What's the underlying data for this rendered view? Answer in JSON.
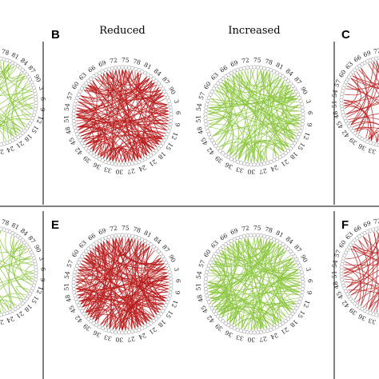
{
  "panels": [
    {
      "letter": "B",
      "column_labels": [
        "Reduced",
        "Increased"
      ]
    },
    {
      "letter": "C"
    },
    {
      "letter": "E"
    },
    {
      "letter": "F"
    }
  ],
  "circle_tick_labels": {
    "left_side": [
      "72",
      "75",
      "78",
      "81",
      "84",
      "87",
      "90",
      "3",
      "6",
      "9",
      "12",
      "15"
    ],
    "right_side": [
      "63",
      "60",
      "57",
      "54",
      "51",
      "48",
      "45",
      "42",
      "39",
      "36",
      "33",
      "30"
    ],
    "bottom": [
      "18",
      "21",
      "24",
      "27"
    ]
  },
  "colors": {
    "reduced": "#b91c1c",
    "increased": "#8cc63f",
    "node_stroke": "#888888",
    "divider": "#000000"
  }
}
